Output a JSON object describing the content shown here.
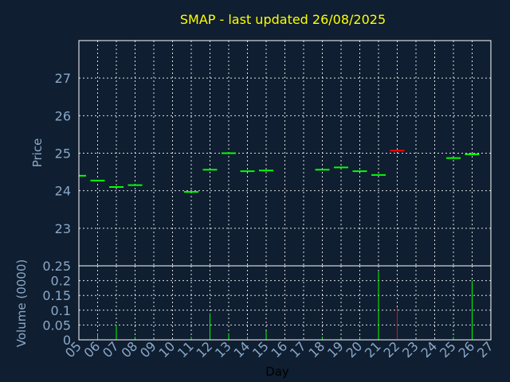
{
  "chart_data": {
    "type": "ohlc-volume",
    "title": "SMAP - last updated 26/08/2025",
    "xlabel": "Day",
    "price_ylabel": "Price",
    "volume_ylabel": "Volume (0000)",
    "x_ticks": [
      "05",
      "06",
      "07",
      "08",
      "09",
      "10",
      "11",
      "12",
      "13",
      "14",
      "15",
      "16",
      "17",
      "18",
      "19",
      "20",
      "21",
      "22",
      "23",
      "24",
      "25",
      "26",
      "27"
    ],
    "price_ylim": [
      22,
      28
    ],
    "price_yticks": [
      "23",
      "24",
      "25",
      "26",
      "27"
    ],
    "volume_ylim": [
      0,
      0.25
    ],
    "volume_yticks": [
      "0",
      "0.05",
      "0.1",
      "0.15",
      "0.2",
      "0.25"
    ],
    "grid": true,
    "colors": {
      "up": "#00ff00",
      "down": "#ff0000",
      "title": "#ffff00",
      "axis": "#8aa8c8",
      "background": "#0f1e30",
      "frame": "#ffffff"
    },
    "series": [
      {
        "day": "05",
        "close": 24.4,
        "volume": 0.0,
        "dir": "up"
      },
      {
        "day": "06",
        "close": 24.27,
        "volume": 0.02,
        "dir": "up"
      },
      {
        "day": "07",
        "close": 24.1,
        "volume": 0.05,
        "dir": "up"
      },
      {
        "day": "08",
        "close": 24.15,
        "volume": 0.01,
        "dir": "up"
      },
      {
        "day": "11",
        "close": 23.97,
        "volume": 0.01,
        "dir": "up"
      },
      {
        "day": "12",
        "close": 24.56,
        "volume": 0.09,
        "dir": "up"
      },
      {
        "day": "13",
        "close": 25.0,
        "volume": 0.02,
        "dir": "up"
      },
      {
        "day": "14",
        "close": 24.52,
        "volume": 0.01,
        "dir": "up"
      },
      {
        "day": "15",
        "close": 24.54,
        "volume": 0.03,
        "dir": "up"
      },
      {
        "day": "18",
        "close": 24.56,
        "volume": 0.01,
        "dir": "up"
      },
      {
        "day": "19",
        "close": 24.62,
        "volume": 0.005,
        "dir": "up"
      },
      {
        "day": "20",
        "close": 24.52,
        "volume": 0.01,
        "dir": "up"
      },
      {
        "day": "21",
        "close": 24.42,
        "volume": 0.23,
        "dir": "up"
      },
      {
        "day": "22",
        "close": 25.07,
        "volume": 0.11,
        "dir": "down"
      },
      {
        "day": "25",
        "close": 24.87,
        "volume": 0.01,
        "dir": "up"
      },
      {
        "day": "26",
        "close": 24.97,
        "volume": 0.2,
        "dir": "up"
      }
    ]
  }
}
